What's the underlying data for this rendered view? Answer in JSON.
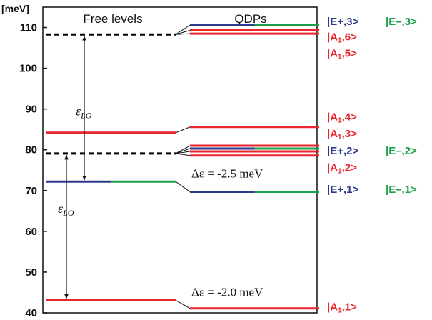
{
  "chart_data": {
    "type": "energy-level-diagram",
    "y_unit": "[meV]",
    "ylim": [
      40,
      115
    ],
    "y_ticks": [
      40,
      50,
      60,
      70,
      80,
      90,
      100,
      110
    ],
    "columns": {
      "free": "Free levels",
      "qdp": "QDPs"
    },
    "free_levels": [
      {
        "energy": 108.3,
        "style": "dashed",
        "colors": [
          "#000000"
        ]
      },
      {
        "energy": 84.2,
        "style": "solid",
        "colors": [
          "#e8262d"
        ]
      },
      {
        "energy": 79.1,
        "style": "dashed",
        "colors": [
          "#000000"
        ]
      },
      {
        "energy": 72.2,
        "style": "solid",
        "colors": [
          "#2e3a8c",
          "#1aa048"
        ]
      },
      {
        "energy": 43.1,
        "style": "solid",
        "colors": [
          "#e8262d"
        ]
      }
    ],
    "qdp_levels": [
      {
        "energy": 110.6,
        "colors": [
          "#2e3a8c",
          "#1aa048"
        ],
        "from": 108.3
      },
      {
        "energy": 109.3,
        "colors": [
          "#e8262d"
        ],
        "from": 108.3
      },
      {
        "energy": 108.5,
        "colors": [
          "#e8262d"
        ],
        "from": 108.3
      },
      {
        "energy": 85.6,
        "colors": [
          "#e8262d"
        ],
        "from": 84.2
      },
      {
        "energy": 81.0,
        "colors": [
          "#e8262d"
        ],
        "from": 79.1
      },
      {
        "energy": 80.3,
        "colors": [
          "#2e3a8c",
          "#1aa048"
        ],
        "from": 79.1
      },
      {
        "energy": 79.6,
        "colors": [
          "#e8262d"
        ],
        "from": 79.1
      },
      {
        "energy": 78.6,
        "colors": [
          "#e8262d"
        ],
        "from": 79.1
      },
      {
        "energy": 69.7,
        "colors": [
          "#2e3a8c",
          "#1aa048"
        ],
        "from": 72.2
      },
      {
        "energy": 41.1,
        "colors": [
          "#e8262d"
        ],
        "from": 43.1
      }
    ],
    "state_labels": [
      {
        "base": "|E+,3>",
        "color": "#2e3a8c",
        "column": 1,
        "row_energy": 111.5
      },
      {
        "base": "|E–,3>",
        "color": "#1aa048",
        "column": 2,
        "row_energy": 111.5
      },
      {
        "base": "|A",
        "sub": "1",
        "tail": ",6>",
        "color": "#e8262d",
        "column": 1,
        "row_energy": 107.7
      },
      {
        "base": "|A",
        "sub": "1",
        "tail": ",5>",
        "color": "#e8262d",
        "column": 1,
        "row_energy": 103.7
      },
      {
        "base": "|A",
        "sub": "1",
        "tail": ",4>",
        "color": "#e8262d",
        "column": 1,
        "row_energy": 88.1
      },
      {
        "base": "|A",
        "sub": "1",
        "tail": ",3>",
        "color": "#e8262d",
        "column": 1,
        "row_energy": 84.0
      },
      {
        "base": "|E+,2>",
        "color": "#2e3a8c",
        "column": 1,
        "row_energy": 79.8
      },
      {
        "base": "|E–,2>",
        "color": "#1aa048",
        "column": 2,
        "row_energy": 79.8
      },
      {
        "base": "|A",
        "sub": "1",
        "tail": ",2>",
        "color": "#e8262d",
        "column": 1,
        "row_energy": 75.7
      },
      {
        "base": "|E+,1>",
        "color": "#2e3a8c",
        "column": 1,
        "row_energy": 70.3
      },
      {
        "base": "|E–,1>",
        "color": "#1aa048",
        "column": 2,
        "row_energy": 70.3
      },
      {
        "base": "|A",
        "sub": "1",
        "tail": ",1>",
        "color": "#e8262d",
        "column": 1,
        "row_energy": 41.5
      }
    ],
    "annotations": [
      {
        "text": "Δε = -2.5 meV",
        "energy": 73.2
      },
      {
        "text": "Δε = -2.0 meV",
        "energy": 44.1
      }
    ],
    "arrows": [
      {
        "label": "ε",
        "sub": "LO",
        "from": 72.2,
        "to": 108.3,
        "label_energy": 89.5
      },
      {
        "label": "ε",
        "sub": "LO",
        "from": 43.1,
        "to": 79.1,
        "label_energy": 65.6
      }
    ]
  }
}
